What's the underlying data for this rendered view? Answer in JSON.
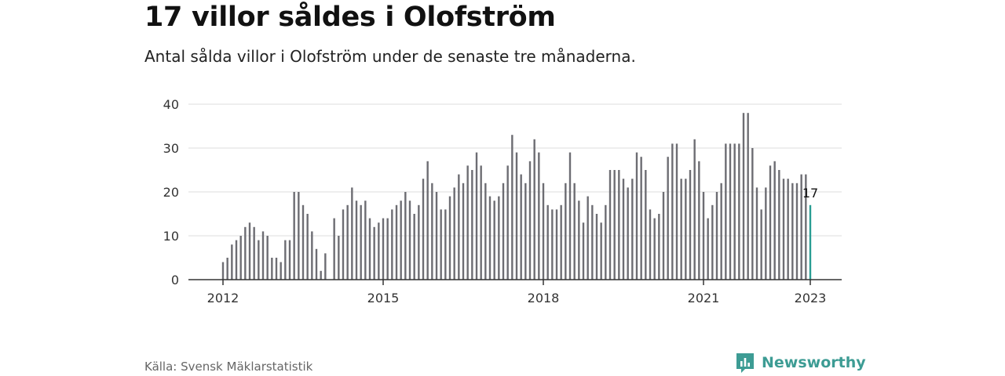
{
  "header": {
    "title": "17 villor såldes i Olofström",
    "subtitle": "Antal sålda villor i Olofström under de senaste tre månaderna."
  },
  "footer": {
    "source": "Källa: Svensk Mäklarstatistik",
    "brand": "Newsworthy"
  },
  "colors": {
    "bar": "#6d6d73",
    "highlight": "#2a9d93",
    "grid": "#dddddd",
    "axis": "#333333",
    "brand": "#3d9c94"
  },
  "chart_data": {
    "type": "bar",
    "title": "",
    "xlabel": "",
    "ylabel": "",
    "ylim": [
      0,
      40
    ],
    "yticks": [
      0,
      10,
      20,
      30,
      40
    ],
    "xticks": [
      {
        "label": "2012",
        "x": "2012-01"
      },
      {
        "label": "2015",
        "x": "2015-01"
      },
      {
        "label": "2018",
        "x": "2018-01"
      },
      {
        "label": "2021",
        "x": "2021-01"
      },
      {
        "label": "2023",
        "x": "2023-01"
      }
    ],
    "grid": true,
    "x": [
      "2012-01",
      "2012-02",
      "2012-03",
      "2012-04",
      "2012-05",
      "2012-06",
      "2012-07",
      "2012-08",
      "2012-09",
      "2012-10",
      "2012-11",
      "2012-12",
      "2013-01",
      "2013-02",
      "2013-03",
      "2013-04",
      "2013-05",
      "2013-06",
      "2013-07",
      "2013-08",
      "2013-09",
      "2013-10",
      "2013-11",
      "2013-12",
      "2014-01",
      "2014-02",
      "2014-03",
      "2014-04",
      "2014-05",
      "2014-06",
      "2014-07",
      "2014-08",
      "2014-09",
      "2014-10",
      "2014-11",
      "2014-12",
      "2015-01",
      "2015-02",
      "2015-03",
      "2015-04",
      "2015-05",
      "2015-06",
      "2015-07",
      "2015-08",
      "2015-09",
      "2015-10",
      "2015-11",
      "2015-12",
      "2016-01",
      "2016-02",
      "2016-03",
      "2016-04",
      "2016-05",
      "2016-06",
      "2016-07",
      "2016-08",
      "2016-09",
      "2016-10",
      "2016-11",
      "2016-12",
      "2017-01",
      "2017-02",
      "2017-03",
      "2017-04",
      "2017-05",
      "2017-06",
      "2017-07",
      "2017-08",
      "2017-09",
      "2017-10",
      "2017-11",
      "2017-12",
      "2018-01",
      "2018-02",
      "2018-03",
      "2018-04",
      "2018-05",
      "2018-06",
      "2018-07",
      "2018-08",
      "2018-09",
      "2018-10",
      "2018-11",
      "2018-12",
      "2019-01",
      "2019-02",
      "2019-03",
      "2019-04",
      "2019-05",
      "2019-06",
      "2019-07",
      "2019-08",
      "2019-09",
      "2019-10",
      "2019-11",
      "2019-12",
      "2020-01",
      "2020-02",
      "2020-03",
      "2020-04",
      "2020-05",
      "2020-06",
      "2020-07",
      "2020-08",
      "2020-09",
      "2020-10",
      "2020-11",
      "2020-12",
      "2021-01",
      "2021-02",
      "2021-03",
      "2021-04",
      "2021-05",
      "2021-06",
      "2021-07",
      "2021-08",
      "2021-09",
      "2021-10",
      "2021-11",
      "2021-12",
      "2022-01",
      "2022-02",
      "2022-03",
      "2022-04",
      "2022-05",
      "2022-06",
      "2022-07",
      "2022-08",
      "2022-09",
      "2022-10",
      "2022-11",
      "2022-12",
      "2023-01"
    ],
    "values": [
      4,
      5,
      8,
      9,
      10,
      12,
      13,
      12,
      9,
      11,
      10,
      5,
      5,
      4,
      9,
      9,
      20,
      20,
      17,
      15,
      11,
      7,
      2,
      6,
      0,
      14,
      10,
      16,
      17,
      21,
      18,
      17,
      18,
      14,
      12,
      13,
      14,
      14,
      16,
      17,
      18,
      20,
      18,
      15,
      17,
      23,
      27,
      22,
      20,
      16,
      16,
      19,
      21,
      24,
      22,
      26,
      25,
      29,
      26,
      22,
      19,
      18,
      19,
      22,
      26,
      33,
      29,
      24,
      22,
      27,
      32,
      29,
      22,
      17,
      16,
      16,
      17,
      22,
      29,
      22,
      18,
      13,
      19,
      17,
      15,
      13,
      17,
      25,
      25,
      25,
      23,
      21,
      23,
      29,
      28,
      25,
      16,
      14,
      15,
      20,
      28,
      31,
      31,
      23,
      23,
      25,
      32,
      27,
      20,
      14,
      17,
      20,
      22,
      31,
      31,
      31,
      31,
      38,
      38,
      30,
      21,
      16,
      21,
      26,
      27,
      25,
      23,
      23,
      22,
      22,
      24,
      24,
      17
    ],
    "annotation": {
      "x": "2023-01",
      "text": "17"
    }
  }
}
